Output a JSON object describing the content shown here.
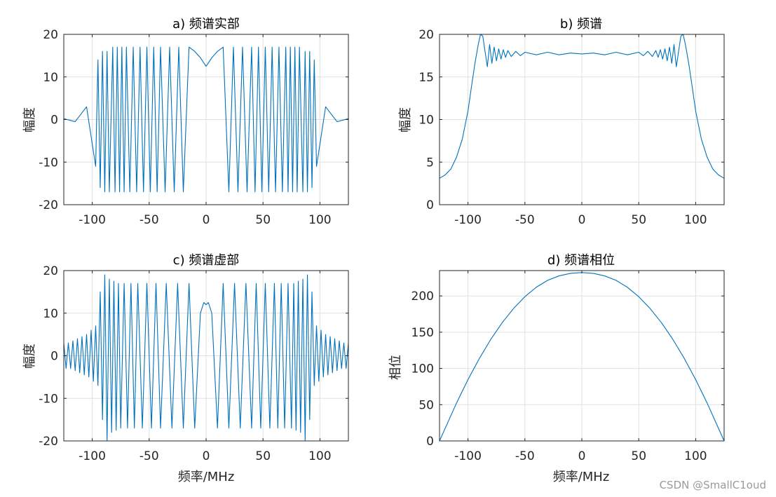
{
  "figure": {
    "watermark": "CSDN @SmallC1oud",
    "colors": {
      "line": "#0072BD",
      "grid": "#e0e0e0",
      "axis": "#262626"
    }
  },
  "chart_data": [
    {
      "id": "a",
      "type": "line",
      "title": "a) 频谱实部",
      "xlabel": "",
      "ylabel": "幅度",
      "xlim": [
        -125,
        125
      ],
      "ylim": [
        -20,
        20
      ],
      "xticks": [
        -100,
        -50,
        0,
        50,
        100
      ],
      "xtick_labels": [
        "-100",
        "-50",
        "0",
        "50",
        "100"
      ],
      "yticks": [
        -20,
        -10,
        0,
        10,
        20
      ],
      "ytick_labels": [
        "-20",
        "-10",
        "0",
        "10",
        "20"
      ],
      "grid": true,
      "series": [
        {
          "x": [
            -125,
            -115,
            -105,
            -97,
            -95,
            -93,
            -91,
            -89,
            -87,
            -85,
            -82,
            -80,
            -78,
            -76,
            -74,
            -72,
            -70,
            -67,
            -64,
            -61,
            -58,
            -55,
            -52,
            -49,
            -46,
            -43,
            -40,
            -36,
            -32,
            -28,
            -24,
            -20,
            -15,
            -10,
            -5,
            0,
            5,
            10,
            15,
            20,
            24,
            28,
            32,
            36,
            40,
            43,
            46,
            49,
            52,
            55,
            58,
            61,
            64,
            67,
            70,
            72,
            74,
            76,
            78,
            80,
            82,
            85,
            87,
            89,
            91,
            93,
            95,
            97,
            105,
            115,
            125
          ],
          "y": [
            0.2,
            -0.5,
            3,
            -11,
            14,
            -16,
            16,
            -17,
            16,
            -17,
            17,
            -17,
            17,
            -17,
            17,
            -17,
            17,
            -17,
            17,
            -17,
            17,
            -17,
            17,
            -17,
            17,
            -17,
            17,
            -17,
            17,
            -17,
            17,
            -17,
            17,
            16,
            14.5,
            12.5,
            14.5,
            16,
            17,
            -17,
            17,
            -17,
            17,
            -17,
            17,
            -17,
            17,
            -17,
            17,
            -17,
            17,
            -17,
            17,
            -17,
            17,
            -17,
            17,
            -17,
            17,
            -17,
            17,
            -17,
            16,
            -17,
            16,
            -16,
            14,
            -11,
            3,
            -0.5,
            0.2
          ]
        }
      ]
    },
    {
      "id": "b",
      "type": "line",
      "title": "b) 频谱",
      "xlabel": "",
      "ylabel": "幅度",
      "xlim": [
        -125,
        125
      ],
      "ylim": [
        0,
        20
      ],
      "xticks": [
        -100,
        -50,
        0,
        50,
        100
      ],
      "xtick_labels": [
        "-100",
        "-50",
        "0",
        "50",
        "100"
      ],
      "yticks": [
        0,
        5,
        10,
        15,
        20
      ],
      "ytick_labels": [
        "0",
        "5",
        "10",
        "15",
        "20"
      ],
      "grid": true,
      "series": [
        {
          "x": [
            -125,
            -120,
            -115,
            -110,
            -105,
            -100,
            -97,
            -94,
            -91,
            -89,
            -87,
            -85,
            -83,
            -81,
            -79,
            -77,
            -75,
            -73,
            -71,
            -69,
            -67,
            -65,
            -62,
            -58,
            -54,
            -50,
            -40,
            -30,
            -20,
            -10,
            0,
            10,
            20,
            30,
            40,
            50,
            54,
            58,
            62,
            65,
            67,
            69,
            71,
            73,
            75,
            77,
            79,
            81,
            83,
            85,
            87,
            89,
            91,
            94,
            97,
            100,
            105,
            110,
            115,
            120,
            125
          ],
          "y": [
            3.1,
            3.5,
            4.2,
            5.6,
            7.7,
            11,
            13.8,
            16.5,
            18.8,
            20,
            19.8,
            18,
            16.2,
            18.8,
            16.6,
            18.5,
            16.9,
            18.3,
            17.1,
            18.2,
            17.3,
            18.1,
            17.4,
            18,
            17.5,
            17.9,
            17.6,
            17.9,
            17.6,
            17.8,
            17.7,
            17.8,
            17.6,
            17.9,
            17.6,
            17.9,
            17.5,
            18,
            17.4,
            18.1,
            17.3,
            18.2,
            17.1,
            18.3,
            16.9,
            18.5,
            16.6,
            18.8,
            16.2,
            18,
            19.8,
            20,
            18.8,
            16.5,
            13.8,
            11,
            7.7,
            5.6,
            4.2,
            3.5,
            3.1
          ]
        }
      ]
    },
    {
      "id": "c",
      "type": "line",
      "title": "c) 频谱虚部",
      "xlabel": "频率/MHz",
      "ylabel": "幅度",
      "xlim": [
        -125,
        125
      ],
      "ylim": [
        -20,
        20
      ],
      "xticks": [
        -100,
        -50,
        0,
        50,
        100
      ],
      "xtick_labels": [
        "-100",
        "-50",
        "0",
        "50",
        "100"
      ],
      "yticks": [
        -20,
        -10,
        0,
        10,
        20
      ],
      "ytick_labels": [
        "-20",
        "-10",
        "0",
        "10",
        "20"
      ],
      "grid": true,
      "series": [
        {
          "x": [
            -125,
            -123,
            -121,
            -119,
            -117,
            -115,
            -113,
            -111,
            -109,
            -107,
            -105,
            -103,
            -101,
            -99,
            -97,
            -95,
            -93,
            -91,
            -89,
            -87,
            -85,
            -83,
            -81,
            -79,
            -77,
            -75,
            -72,
            -69,
            -66,
            -63,
            -60,
            -56,
            -52,
            -48,
            -44,
            -40,
            -35,
            -30,
            -25,
            -20,
            -15,
            -10,
            -5,
            -2,
            0,
            2,
            5,
            10,
            15,
            20,
            25,
            30,
            35,
            40,
            44,
            48,
            52,
            56,
            60,
            63,
            66,
            69,
            72,
            75,
            77,
            79,
            81,
            83,
            85,
            87,
            89,
            91,
            93,
            95,
            97,
            99,
            101,
            103,
            105,
            107,
            109,
            111,
            113,
            115,
            117,
            119,
            121,
            123,
            125
          ],
          "y": [
            3,
            -3,
            3,
            -3,
            3.5,
            -3.5,
            4,
            -4,
            4.5,
            -4.5,
            5,
            -5,
            6,
            -6,
            7,
            -7,
            15,
            -15,
            19,
            -20,
            18,
            -18,
            17.5,
            -17.5,
            17,
            -17,
            17,
            -17,
            17,
            -17,
            17,
            -17,
            17,
            -17,
            17,
            -17,
            17,
            -17,
            17,
            -17,
            17,
            -17,
            10,
            12.5,
            12,
            12.5,
            10,
            -17,
            17,
            -17,
            17,
            -17,
            17,
            -17,
            17,
            -17,
            17,
            -17,
            17,
            -17,
            17,
            -17,
            17,
            -17,
            17,
            -17.5,
            17.5,
            -18,
            18,
            -20,
            19,
            -15,
            15,
            -7,
            7,
            -6,
            6,
            -5,
            5,
            -4.5,
            4.5,
            -4,
            4,
            -3.5,
            3.5,
            -3,
            3,
            -3,
            3
          ]
        }
      ]
    },
    {
      "id": "d",
      "type": "line",
      "title": "d) 频谱相位",
      "xlabel": "频率/MHz",
      "ylabel": "相位",
      "xlim": [
        -125,
        125
      ],
      "ylim": [
        0,
        235
      ],
      "xticks": [
        -100,
        -50,
        0,
        50,
        100
      ],
      "xtick_labels": [
        "-100",
        "-50",
        "0",
        "50",
        "100"
      ],
      "yticks": [
        0,
        50,
        100,
        150,
        200
      ],
      "ytick_labels": [
        "0",
        "50",
        "100",
        "150",
        "200"
      ],
      "grid": true,
      "series": [
        {
          "x": [
            -125,
            -110,
            -100,
            -90,
            -80,
            -70,
            -60,
            -50,
            -40,
            -30,
            -20,
            -10,
            0,
            10,
            20,
            30,
            40,
            50,
            60,
            70,
            80,
            90,
            100,
            110,
            125
          ],
          "y": [
            0,
            52.5,
            84.6,
            113.8,
            140,
            163,
            182.6,
            199,
            212,
            221.6,
            227.7,
            231.2,
            232.3,
            231.2,
            227.7,
            221.6,
            212,
            199,
            182.6,
            163,
            140,
            113.8,
            84.6,
            52.5,
            0
          ]
        }
      ]
    }
  ]
}
